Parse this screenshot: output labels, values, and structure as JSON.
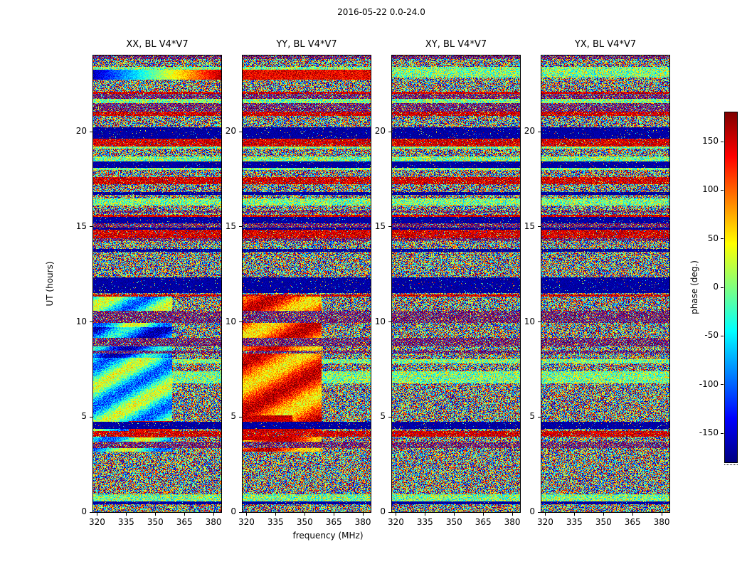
{
  "chart_data": {
    "type": "heatmap",
    "title": "2016-05-22 0.0-24.0",
    "xlabel": "frequency (MHz)",
    "ylabel": "UT (hours)",
    "panels": [
      {
        "id": "XX",
        "title": "XX, BL V4*V7"
      },
      {
        "id": "YY",
        "title": "YY, BL V4*V7"
      },
      {
        "id": "XY",
        "title": "XY, BL V4*V7"
      },
      {
        "id": "YX",
        "title": "YX, BL V4*V7"
      }
    ],
    "x": {
      "label": "frequency (MHz)",
      "min": 318,
      "max": 384,
      "ticks": [
        320,
        335,
        350,
        365,
        380
      ]
    },
    "y": {
      "label": "UT (hours)",
      "min": 0,
      "max": 24,
      "ticks": [
        0,
        5,
        10,
        15,
        20
      ]
    },
    "colorbar": {
      "label": "phase (deg.)",
      "min": -180,
      "max": 180,
      "ticks": [
        150,
        100,
        50,
        0,
        -50,
        -100,
        -150
      ],
      "colormap": "jet"
    },
    "render": {
      "seed": 20160522,
      "rows": 642,
      "cols": 180,
      "dark_band_hours": [
        11.55,
        12.3
      ],
      "coherent_region": {
        "hours": [
          3.2,
          11.3
        ],
        "freq_fraction_max": 0.62,
        "panels": [
          "XX",
          "YY"
        ]
      },
      "top_band_hours": [
        22.75,
        23.25
      ],
      "description": "Visibility phase spectrograms vs UT and frequency for four polarization products of baseline V4*V7. Mostly noise-like phase (-180 to 180 deg, jet colormap) organized in horizontal time bands; a deep-blue (~-180 deg) band crosses all panels near UT 12; XX and YY show a coherent low-noise region between UT ~3-11 below ~358 MHz (green/cyan/blue in XX with a red patch near UT 4.3; yellow/orange/red in YY), and a band near UT ~23 (blue-to-red frequency gradient in XX, red in YY). XY and YX are noise-like throughout with the same banding."
    }
  }
}
